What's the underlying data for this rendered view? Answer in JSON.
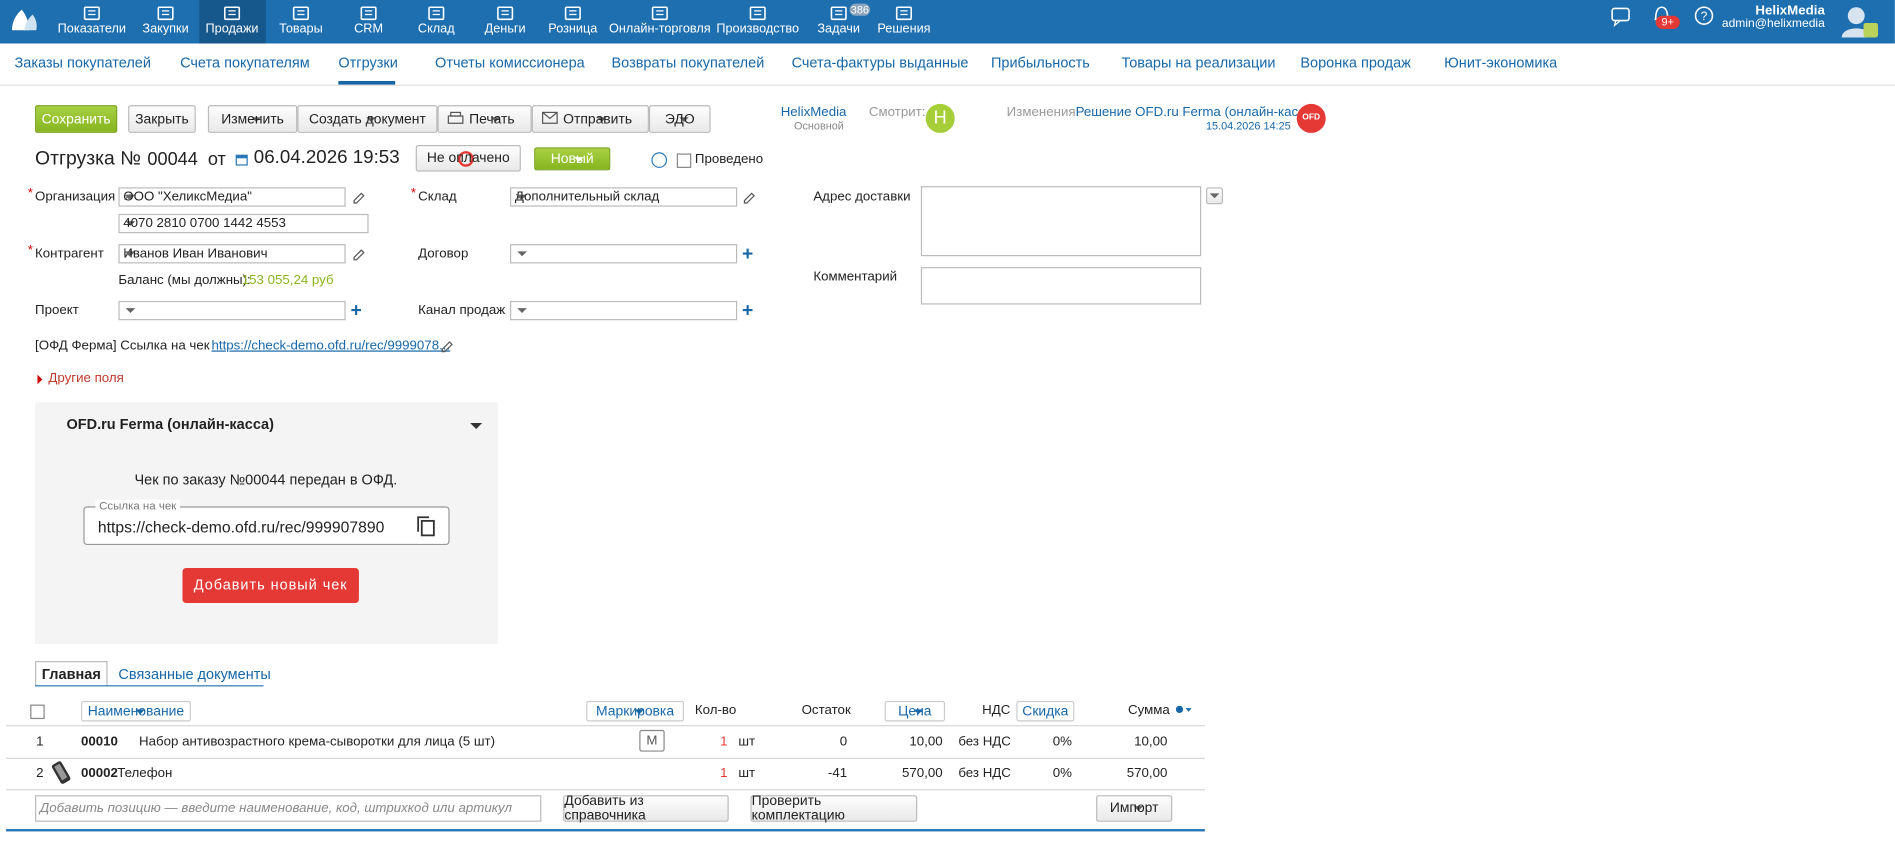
{
  "topnav": {
    "items": [
      "Показатели",
      "Закупки",
      "Продажи",
      "Товары",
      "CRM",
      "Склад",
      "Деньги",
      "Розница",
      "Онлайн-торговля",
      "Производство",
      "Задачи",
      "Решения"
    ],
    "tasks_badge": "386",
    "notif_badge": "9+",
    "user_name": "HelixMedia",
    "user_email": "admin@helixmedia"
  },
  "subnav": [
    "Заказы покупателей",
    "Счета покупателям",
    "Отгрузки",
    "Отчеты комиссионера",
    "Возвраты покупателей",
    "Счета-фактуры выданные",
    "Прибыльность",
    "Товары на реализации",
    "Воронка продаж",
    "Юнит-экономика"
  ],
  "toolbar": {
    "save": "Сохранить",
    "close": "Закрыть",
    "edit": "Изменить",
    "create": "Создать документ",
    "print": "Печать",
    "send": "Отправить",
    "edo": "ЭДО"
  },
  "owner": {
    "name": "HelixMedia",
    "role": "Основной",
    "watching": "Смотрит:",
    "avatar": "H"
  },
  "changes": {
    "label": "Изменения:",
    "text": "Решение OFD.ru Ferma (онлайн-касса)",
    "date": "15.04.2026 14:25",
    "badge": "OFD"
  },
  "doc": {
    "title": "Отгрузка №",
    "number": "00044",
    "from": "от",
    "date": "06.04.2026 19:53",
    "payment": "Не оплачено",
    "status": "Новый",
    "posted": "Проведено"
  },
  "fields": {
    "org_label": "Организация",
    "org_value": "ООО \"ХеликсМедиа\"",
    "account_value": "4070 2810 0700 1442 4553",
    "store_label": "Склад",
    "store_value": "Дополнительный склад",
    "address_label": "Адрес доставки",
    "counterparty_label": "Контрагент",
    "counterparty_value": "Иванов Иван Иванович",
    "contract_label": "Договор",
    "balance_label": "Баланс (мы должны):",
    "balance_value": "153 055,24 руб",
    "comment_label": "Комментарий",
    "project_label": "Проект",
    "channel_label": "Канал продаж",
    "receipt_label": "[ОФД Ферма] Ссылка на чек",
    "receipt_link": "https://check-demo.ofd.ru/rec/9999078...",
    "other_fields": "Другие поля"
  },
  "ofd_panel": {
    "title": "OFD.ru Ferma (онлайн-касса)",
    "message": "Чек по заказу №00044 передан в ОФД.",
    "link_legend": "Ссылка на чек",
    "link_value": "https://check-demo.ofd.ru/rec/999907890",
    "button": "Добавить новый чек"
  },
  "tabs": [
    "Главная",
    "Связанные документы"
  ],
  "table": {
    "headers": [
      "Наименование",
      "Маркировка",
      "Кол-во",
      "Остаток",
      "Цена",
      "НДС",
      "Скидка",
      "Сумма"
    ],
    "rows": [
      [
        "1",
        "00010",
        "Набор антивозрастного крема-сыворотки для лица (5 шт)",
        "М",
        "1",
        "шт",
        "0",
        "10,00",
        "без НДС",
        "0%",
        "10,00"
      ],
      [
        "2",
        "00002",
        "Телефон",
        "",
        "1",
        "шт",
        "-41",
        "570,00",
        "без НДС",
        "0%",
        "570,00"
      ]
    ]
  },
  "footer": {
    "placeholder": "Добавить позицию — введите наименование, код, штрихкод или артикул",
    "add_from_catalog": "Добавить из справочника",
    "check_set": "Проверить комплектацию",
    "import": "Импорт"
  }
}
